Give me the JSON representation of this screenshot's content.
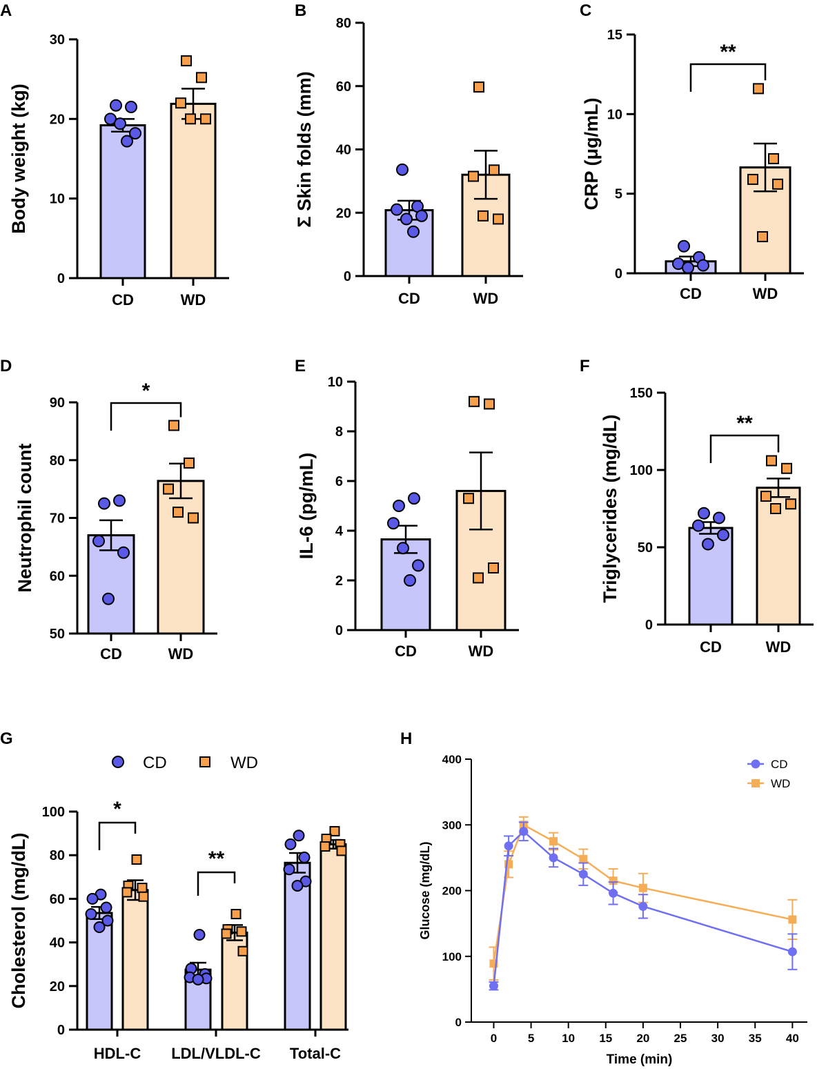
{
  "colors": {
    "cd_fill": "#c6c6fb",
    "wd_fill": "#fde3c6",
    "cd_point": "#5a5ae6",
    "wd_point": "#f6a04d",
    "h_cd": "#6f6ff2",
    "h_wd": "#f6ad58"
  },
  "chart_data": [
    {
      "panel": "A",
      "type": "bar",
      "ylabel": "Body weight (kg)",
      "categories": [
        "CD",
        "WD"
      ],
      "ylim": [
        0,
        30
      ],
      "yticks": [
        0,
        10,
        20,
        30
      ],
      "means": [
        19.2,
        21.9
      ],
      "sem": [
        0.8,
        1.9
      ],
      "points": [
        [
          21.7,
          21.5,
          20.0,
          18.2,
          19.4,
          17.2
        ],
        [
          27.3,
          25.2,
          22.0,
          20.0,
          20.0
        ]
      ]
    },
    {
      "panel": "B",
      "type": "bar",
      "ylabel": "Σ Skin folds (mm)",
      "categories": [
        "CD",
        "WD"
      ],
      "ylim": [
        0,
        80
      ],
      "yticks": [
        0,
        20,
        40,
        60,
        80
      ],
      "means": [
        20.8,
        32.0
      ],
      "sem": [
        3.0,
        7.6
      ],
      "points": [
        [
          33.6,
          22.0,
          21.0,
          19.0,
          18.0,
          14.0
        ],
        [
          59.7,
          33.5,
          31.5,
          18.0,
          19.0
        ]
      ]
    },
    {
      "panel": "C",
      "type": "bar",
      "ylabel": "CRP (μg/mL)",
      "categories": [
        "CD",
        "WD"
      ],
      "ylim": [
        0,
        15
      ],
      "yticks": [
        0,
        5,
        10,
        15
      ],
      "means": [
        0.75,
        6.65
      ],
      "sem": [
        0.3,
        1.5
      ],
      "points": [
        [
          1.7,
          1.0,
          0.6,
          0.5,
          0.35
        ],
        [
          11.6,
          7.2,
          5.9,
          5.6,
          2.3
        ]
      ],
      "significance": [
        {
          "between": [
            0,
            1
          ],
          "label": "**"
        }
      ]
    },
    {
      "panel": "D",
      "type": "bar",
      "ylabel": "Neutrophil  count",
      "categories": [
        "CD",
        "WD"
      ],
      "ylim": [
        50,
        90
      ],
      "yticks": [
        50,
        60,
        70,
        80,
        90
      ],
      "means": [
        67.0,
        76.4
      ],
      "sem": [
        2.6,
        3.0
      ],
      "points": [
        [
          72.5,
          73.0,
          66.0,
          64.0,
          56.0
        ],
        [
          86.0,
          79.5,
          75.0,
          70.0,
          71.0
        ]
      ],
      "significance": [
        {
          "between": [
            0,
            1
          ],
          "label": "*"
        }
      ]
    },
    {
      "panel": "E",
      "type": "bar",
      "ylabel": "IL-6 (pg/mL)",
      "categories": [
        "CD",
        "WD"
      ],
      "ylim": [
        0,
        10
      ],
      "yticks": [
        0,
        2,
        4,
        6,
        8,
        10
      ],
      "means": [
        3.65,
        5.6
      ],
      "sem": [
        0.55,
        1.55
      ],
      "points": [
        [
          5.0,
          5.3,
          4.3,
          2.6,
          3.3,
          2.0
        ],
        [
          9.2,
          9.1,
          5.3,
          2.5,
          2.1
        ]
      ]
    },
    {
      "panel": "F",
      "type": "bar",
      "ylabel": "Triglycerides (mg/dL)",
      "categories": [
        "CD",
        "WD"
      ],
      "ylim": [
        0,
        150
      ],
      "yticks": [
        0,
        50,
        100,
        150
      ],
      "means": [
        62.5,
        88.5
      ],
      "sem": [
        3.8,
        6.0
      ],
      "points": [
        [
          72.0,
          69.0,
          64.0,
          58.0,
          52.0
        ],
        [
          106.0,
          101.0,
          83.0,
          78.0,
          75.0
        ]
      ],
      "significance": [
        {
          "between": [
            0,
            1
          ],
          "label": "**"
        }
      ]
    },
    {
      "panel": "G",
      "type": "bar",
      "ylabel": "Cholesterol (mg/dL)",
      "categories": [
        "HDL-C",
        "LDL/VLDL-C",
        "Total-C"
      ],
      "legend": [
        "CD",
        "WD"
      ],
      "ylim": [
        0,
        100
      ],
      "yticks": [
        0,
        20,
        40,
        60,
        80,
        100
      ],
      "series": [
        {
          "name": "CD",
          "values": [
            53.5,
            27.5,
            76.5
          ],
          "sem": [
            2.8,
            3.2,
            4.5
          ],
          "points": [
            [
              62.0,
              60.0,
              56.0,
              53.0,
              50.0,
              47.0
            ],
            [
              43.5,
              28.0,
              25.5,
              24.0,
              23.5,
              23.0
            ],
            [
              89.0,
              85.0,
              79.0,
              73.5,
              68.0,
              66.0
            ]
          ]
        },
        {
          "name": "WD",
          "values": [
            64.0,
            44.5,
            85.0
          ],
          "sem": [
            4.5,
            3.5,
            2.0
          ],
          "points": [
            [
              78.0,
              66.0,
              65.0,
              63.0,
              61.0
            ],
            [
              53.0,
              46.0,
              45.0,
              44.0,
              36.0
            ],
            [
              91.0,
              87.5,
              85.0,
              84.0,
              82.0
            ]
          ]
        }
      ],
      "significance": [
        {
          "group": 0,
          "label": "*"
        },
        {
          "group": 1,
          "label": "**"
        }
      ]
    },
    {
      "panel": "H",
      "type": "line",
      "xlabel": "Time (min)",
      "ylabel": "Glucose (mg/dL)",
      "xlim": [
        -3,
        42
      ],
      "ylim": [
        0,
        400
      ],
      "xticks": [
        0,
        5,
        10,
        15,
        20,
        25,
        30,
        35,
        40
      ],
      "yticks": [
        0,
        100,
        200,
        300,
        400
      ],
      "x": [
        0,
        2,
        4,
        8,
        12,
        16,
        20,
        40
      ],
      "series": [
        {
          "name": "CD",
          "values": [
            55,
            268,
            290,
            250,
            225,
            196,
            176,
            107
          ],
          "err": [
            6,
            15,
            14,
            14,
            17,
            17,
            18,
            27
          ]
        },
        {
          "name": "WD",
          "values": [
            89,
            240,
            300,
            275,
            248,
            215,
            204,
            156
          ],
          "err": [
            25,
            20,
            12,
            13,
            15,
            18,
            22,
            30
          ]
        }
      ],
      "legend": [
        "CD",
        "WD"
      ]
    }
  ]
}
